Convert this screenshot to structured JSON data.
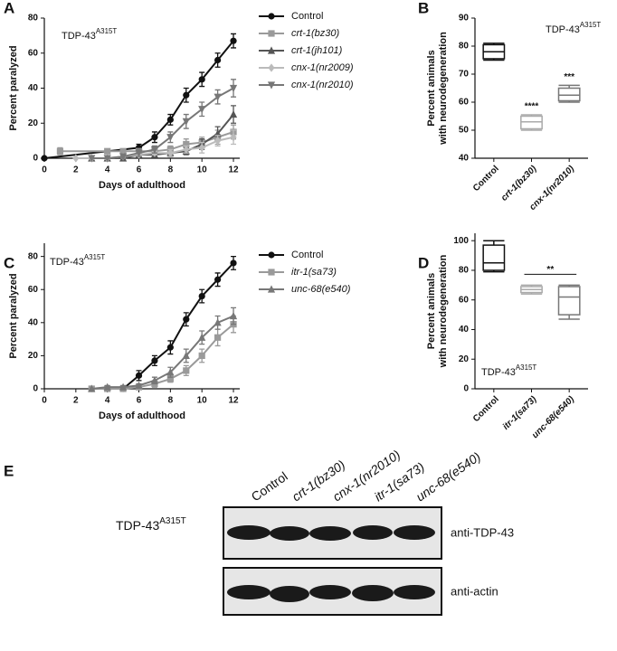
{
  "panels": [
    "A",
    "B",
    "C",
    "D",
    "E"
  ],
  "chart_data": [
    {
      "type": "line",
      "x_label": "Days of adulthood",
      "y_label": "Percent paralyzed",
      "annotation": {
        "text": "TDP-43",
        "sup": "A315T"
      },
      "xlim": [
        0,
        12.4
      ],
      "xticks": [
        0,
        2,
        4,
        6,
        8,
        10,
        12
      ],
      "ylim": [
        0,
        80
      ],
      "yticks": [
        0,
        20,
        40,
        60,
        80
      ],
      "series": [
        {
          "name": "Control",
          "color": "#111111",
          "marker": "circle",
          "x": [
            0,
            6,
            7,
            8,
            9,
            10,
            11,
            12
          ],
          "values": [
            0,
            6,
            12,
            22,
            36,
            45,
            56,
            67
          ],
          "errors": [
            0,
            2,
            3,
            3,
            4,
            4,
            4,
            4
          ]
        },
        {
          "name": "crt-1(bz30)",
          "color": "#9a9a9a",
          "marker": "square",
          "x": [
            1,
            4,
            5,
            6,
            7,
            8,
            9,
            10,
            11,
            12
          ],
          "values": [
            4,
            4,
            4,
            4,
            4,
            5,
            8,
            9,
            12,
            15
          ],
          "errors": [
            2,
            1,
            1,
            1,
            2,
            2,
            3,
            3,
            4,
            4
          ]
        },
        {
          "name": "crt-1(jh101)",
          "color": "#555555",
          "marker": "triangle",
          "x": [
            3,
            4,
            5,
            6,
            7,
            8,
            9,
            10,
            11,
            12
          ],
          "values": [
            0,
            0,
            0,
            2,
            2,
            3,
            4,
            8,
            14,
            25
          ],
          "errors": [
            0,
            0,
            0,
            1,
            1,
            2,
            2,
            3,
            4,
            5
          ]
        },
        {
          "name": "cnx-1(nr2009)",
          "color": "#bbbbbb",
          "marker": "diamond",
          "x": [
            2,
            3,
            4,
            5,
            6,
            7,
            8,
            9,
            10,
            11,
            12
          ],
          "values": [
            0,
            0,
            0,
            1,
            2,
            3,
            3,
            5,
            6,
            10,
            12
          ],
          "errors": [
            0,
            0,
            0,
            1,
            1,
            1,
            2,
            2,
            3,
            3,
            4
          ]
        },
        {
          "name": "cnx-1(nr2010)",
          "color": "#777777",
          "marker": "tridown",
          "x": [
            3,
            4,
            5,
            6,
            7,
            8,
            9,
            10,
            11,
            12
          ],
          "values": [
            0,
            0,
            1,
            3,
            5,
            12,
            21,
            28,
            35,
            40
          ],
          "errors": [
            0,
            0,
            1,
            2,
            2,
            3,
            4,
            4,
            4,
            5
          ]
        }
      ]
    },
    {
      "type": "box",
      "y_label": [
        "Percent animals",
        "with neurodegeneration"
      ],
      "annotation": {
        "text": "TDP-43",
        "sup": "A315T"
      },
      "ylim": [
        40,
        90
      ],
      "yticks": [
        40,
        50,
        60,
        70,
        80,
        90
      ],
      "categories": [
        "Control",
        "crt-1(bz30)",
        "cnx-1(nr2010)"
      ],
      "colors": [
        "#111111",
        "#aaaaaa",
        "#777777"
      ],
      "significance": [
        null,
        "****",
        "***"
      ],
      "boxes": [
        {
          "min": 75,
          "q1": 75.5,
          "median": 78,
          "q3": 80.5,
          "max": 81
        },
        {
          "min": 50,
          "q1": 50.5,
          "median": 53,
          "q3": 55,
          "max": 55.5
        },
        {
          "min": 60,
          "q1": 60.5,
          "median": 62.5,
          "q3": 65,
          "max": 66
        }
      ]
    },
    {
      "type": "line",
      "x_label": "Days of adulthood",
      "y_label": "Percent paralyzed",
      "annotation": {
        "text": "TDP-43",
        "sup": "A315T"
      },
      "xlim": [
        0,
        12.4
      ],
      "xticks": [
        0,
        2,
        4,
        6,
        8,
        10,
        12
      ],
      "ylim": [
        0,
        88
      ],
      "yticks": [
        0,
        20,
        40,
        60,
        80
      ],
      "series": [
        {
          "name": "Control",
          "color": "#111111",
          "marker": "circle",
          "x": [
            3,
            4,
            5,
            6,
            7,
            8,
            9,
            10,
            11,
            12
          ],
          "values": [
            0,
            0,
            0,
            8,
            17,
            25,
            42,
            56,
            66,
            76
          ],
          "errors": [
            0,
            0,
            0,
            3,
            3,
            4,
            4,
            4,
            4,
            4
          ]
        },
        {
          "name": "itr-1(sa73)",
          "color": "#9a9a9a",
          "marker": "square",
          "x": [
            3,
            4,
            5,
            6,
            7,
            8,
            9,
            10,
            11,
            12
          ],
          "values": [
            0,
            0,
            0,
            1,
            3,
            6,
            11,
            20,
            31,
            39
          ],
          "errors": [
            0,
            0,
            0,
            1,
            2,
            2,
            3,
            4,
            5,
            5
          ]
        },
        {
          "name": "unc-68(e540)",
          "color": "#777777",
          "marker": "triangle",
          "x": [
            3,
            4,
            5,
            6,
            7,
            8,
            9,
            10,
            11,
            12
          ],
          "values": [
            0,
            1,
            1,
            2,
            5,
            10,
            20,
            31,
            40,
            44
          ],
          "errors": [
            0,
            1,
            1,
            1,
            2,
            3,
            4,
            4,
            4,
            5
          ]
        }
      ]
    },
    {
      "type": "box",
      "y_label": [
        "Percent animals",
        "with neurodegeneration"
      ],
      "annotation": {
        "text": "TDP-43",
        "sup": "A315T"
      },
      "ylim": [
        0,
        105
      ],
      "yticks": [
        0,
        20,
        40,
        60,
        80,
        100
      ],
      "categories": [
        "Control",
        "itr-1(sa73)",
        "unc-68(e540)"
      ],
      "colors": [
        "#111111",
        "#aaaaaa",
        "#777777"
      ],
      "significance": [
        null,
        "**",
        null
      ],
      "boxes": [
        {
          "min": 79,
          "q1": 80,
          "median": 85,
          "q3": 97,
          "max": 100
        },
        {
          "min": 64,
          "q1": 65,
          "median": 67,
          "q3": 69,
          "max": 70
        },
        {
          "min": 47,
          "q1": 50,
          "median": 62,
          "q3": 69,
          "max": 70
        }
      ]
    }
  ],
  "blot": {
    "strain": {
      "text": "TDP-43",
      "sup": "A315T"
    },
    "lanes": [
      "Control",
      "crt-1(bz30)",
      "cnx-1(nr2010)",
      "itr-1(sa73)",
      "unc-68(e540)"
    ],
    "rows": [
      "anti-TDP-43",
      "anti-actin"
    ]
  }
}
